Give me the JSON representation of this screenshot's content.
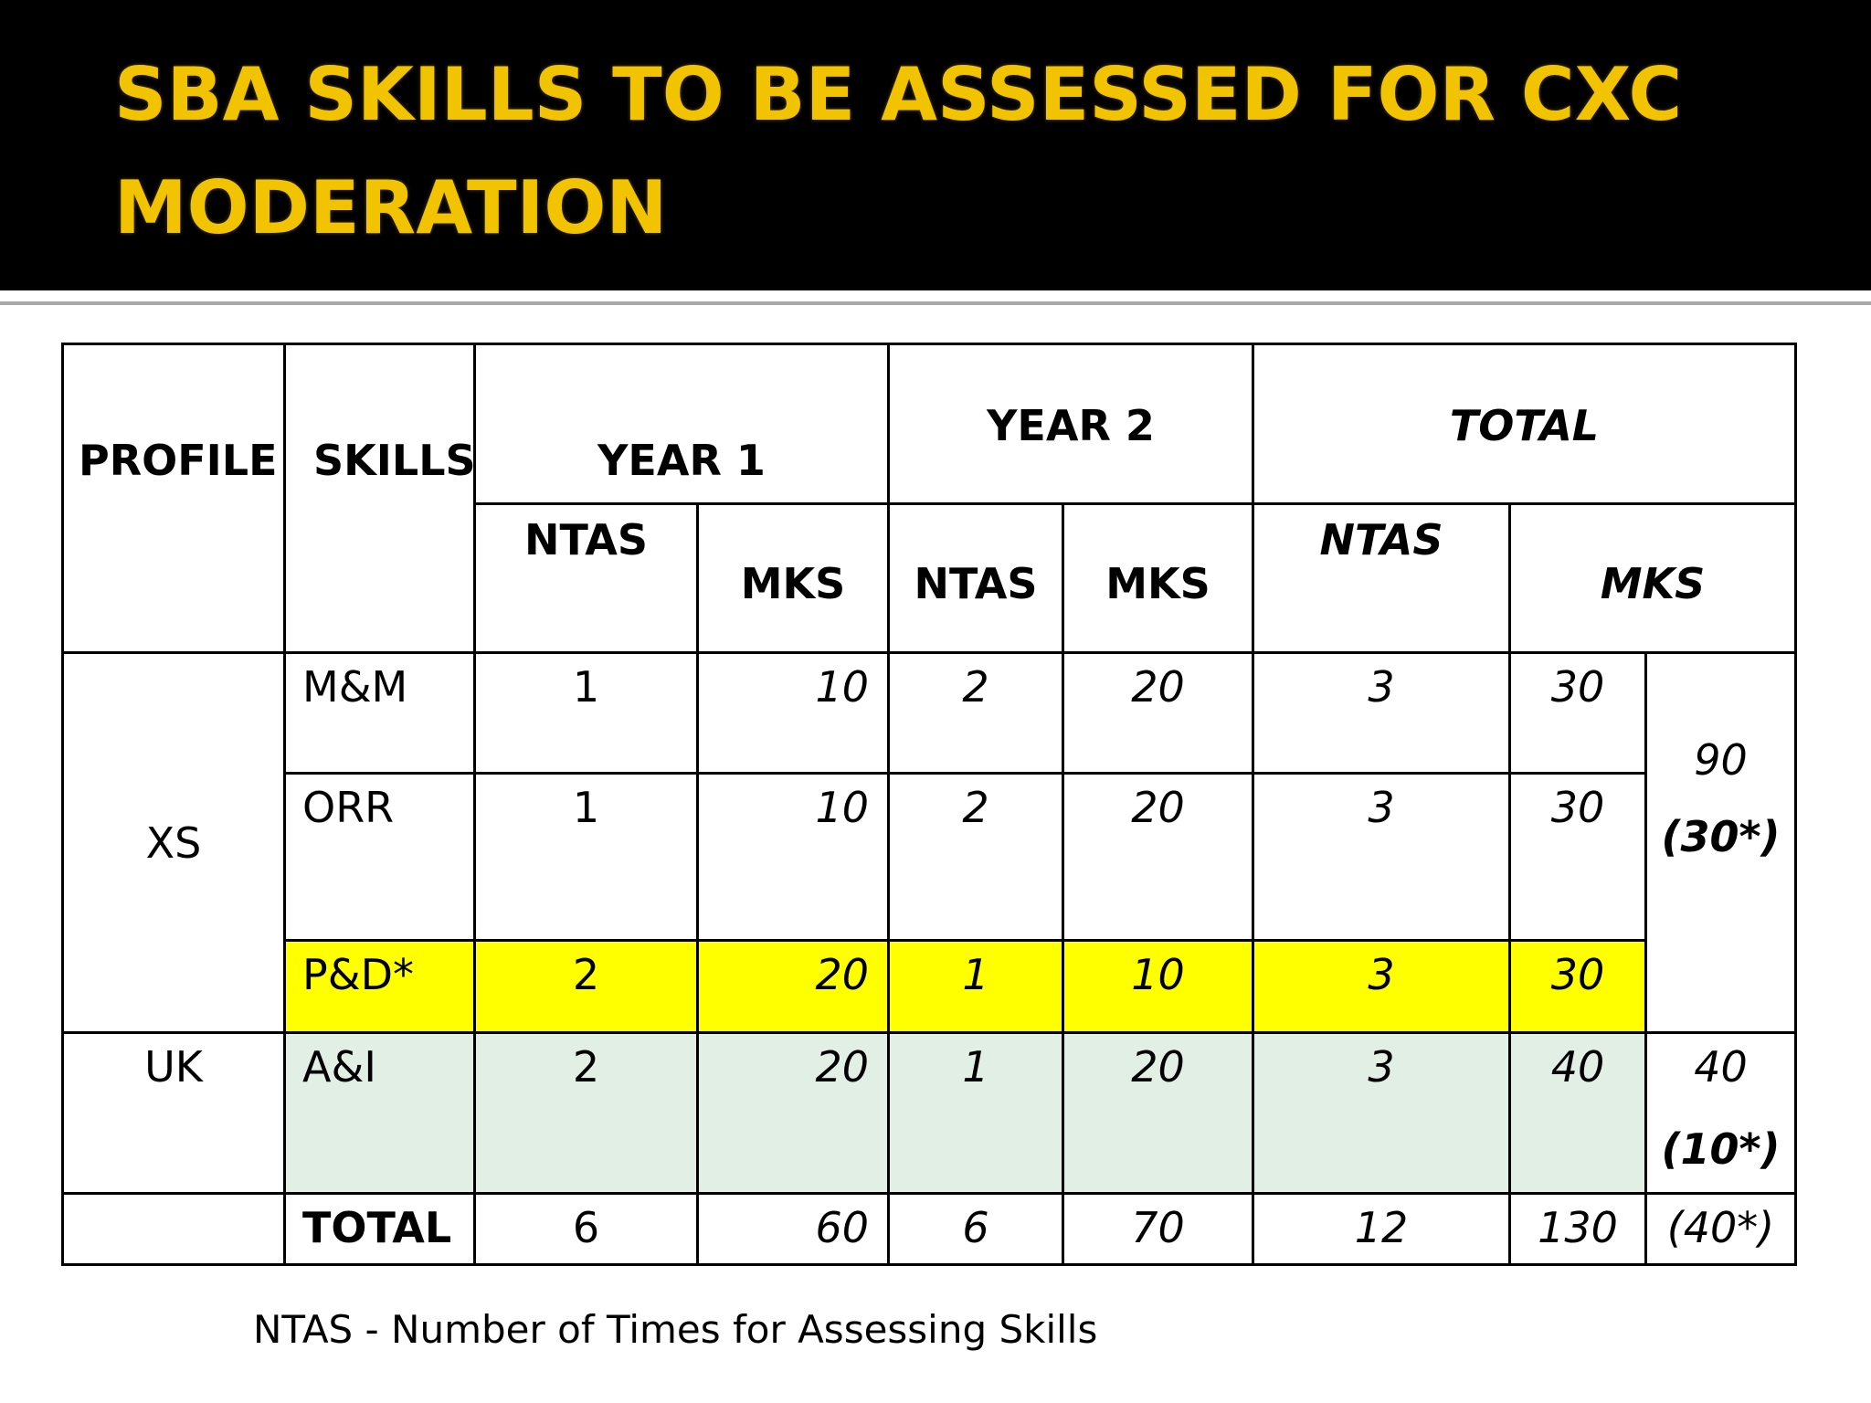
{
  "slide": {
    "title_line1": "SBA SKILLS TO BE ASSESSED FOR CXC",
    "title_line2": "MODERATION",
    "footnote": "NTAS - Number of Times for Assessing Skills",
    "colors": {
      "title_bg": "#000000",
      "title_text": "#f2c300",
      "highlight_yellow": "#ffff00",
      "highlight_green": "#e2efe5"
    }
  },
  "table": {
    "headers": {
      "profile": "PROFILE",
      "skills": "SKILLS",
      "year1": "YEAR 1",
      "year2": "YEAR 2",
      "total": "TOTAL",
      "y1_ntas": "NTAS",
      "y1_mks": "MKS",
      "y2_ntas": "NTAS",
      "y2_mks": "MKS",
      "t_ntas": "NTAS",
      "t_mks": "MKS"
    },
    "profiles": {
      "xs": "XS",
      "uk": "UK"
    },
    "rows": [
      {
        "skill": "M&M",
        "y1_ntas": "1",
        "y1_mks": "10",
        "y2_ntas": "2",
        "y2_mks": "20",
        "t_ntas": "3",
        "t_mks": "30"
      },
      {
        "skill": "ORR",
        "y1_ntas": "1",
        "y1_mks": "10",
        "y2_ntas": "2",
        "y2_mks": "20",
        "t_ntas": "3",
        "t_mks": "30"
      },
      {
        "skill": "P&D*",
        "y1_ntas": "2",
        "y1_mks": "20",
        "y2_ntas": "1",
        "y2_mks": "10",
        "t_ntas": "3",
        "t_mks": "30"
      },
      {
        "skill": "A&I",
        "y1_ntas": "2",
        "y1_mks": "20",
        "y2_ntas": "1",
        "y2_mks": "20",
        "t_ntas": "3",
        "t_mks": "40"
      }
    ],
    "xs_group_total": "90",
    "xs_group_total_star": "(30*)",
    "uk_group_total": "40",
    "uk_group_total_star": "(10*)",
    "total_row": {
      "label": "TOTAL",
      "y1_ntas": "6",
      "y1_mks": "60",
      "y2_ntas": "6",
      "y2_mks": "70",
      "t_ntas": "12",
      "t_mks": "130",
      "star": "(40*)"
    }
  }
}
